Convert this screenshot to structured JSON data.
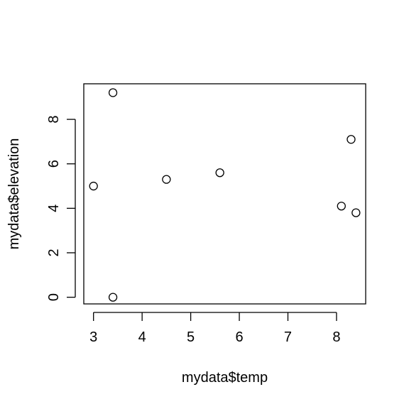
{
  "chart_data": {
    "type": "scatter",
    "title": "",
    "xlabel": "mydata$temp",
    "ylabel": "mydata$elevation",
    "xlim": [
      2.8,
      8.6
    ],
    "ylim": [
      -0.3,
      9.6
    ],
    "x_ticks": [
      3,
      4,
      5,
      6,
      7,
      8
    ],
    "y_ticks": [
      0,
      2,
      4,
      6,
      8
    ],
    "x_tick_labels": [
      "3",
      "4",
      "5",
      "6",
      "7",
      "8"
    ],
    "y_tick_labels": [
      "0",
      "2",
      "4",
      "6",
      "8"
    ],
    "grid": false,
    "legend": "none",
    "marker": "open-circle",
    "x": [
      3.0,
      3.4,
      3.4,
      4.5,
      5.6,
      8.1,
      8.3,
      8.4
    ],
    "y": [
      5.0,
      9.2,
      0.0,
      5.3,
      5.6,
      4.1,
      7.1,
      3.8
    ],
    "colors": {
      "points": "#000000",
      "axes": "#000000",
      "background": "#ffffff"
    }
  }
}
